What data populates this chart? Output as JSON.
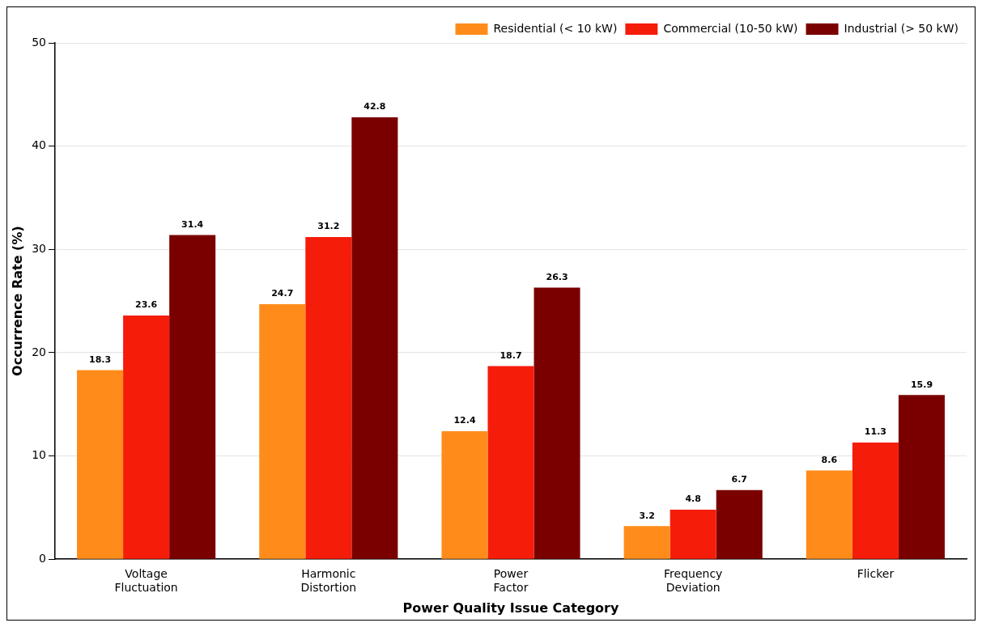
{
  "chart_data": {
    "type": "bar",
    "xlabel": "Power Quality Issue Category",
    "ylabel": "Occurrence Rate (%)",
    "categories": [
      "Voltage Fluctuation",
      "Harmonic Distortion",
      "Power Factor",
      "Frequency Deviation",
      "Flicker"
    ],
    "series": [
      {
        "name": "Residential (< 10 kW)",
        "color": "#ff8c1a",
        "values": [
          18.3,
          24.7,
          12.4,
          3.2,
          8.6
        ]
      },
      {
        "name": "Commercial (10-50 kW)",
        "color": "#f51c0a",
        "values": [
          23.6,
          31.2,
          18.7,
          4.8,
          11.3
        ]
      },
      {
        "name": "Industrial (> 50 kW)",
        "color": "#7a0000",
        "values": [
          31.4,
          42.8,
          26.3,
          6.7,
          15.9
        ]
      }
    ],
    "ylim": [
      0,
      50
    ],
    "yticks": [
      0,
      10,
      20,
      30,
      40,
      50
    ],
    "grid": "y",
    "legend": "top right",
    "data_labels": true
  }
}
